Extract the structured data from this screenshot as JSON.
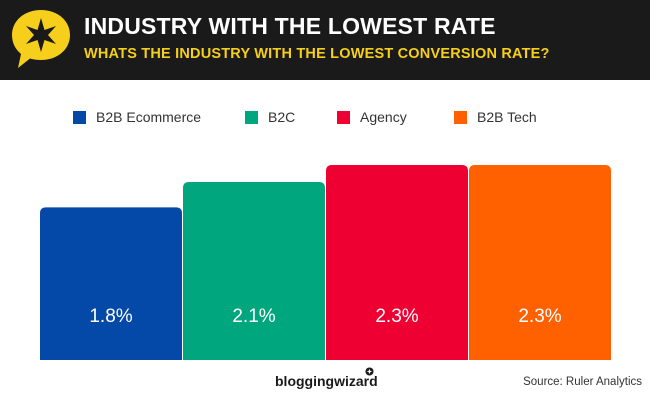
{
  "header": {
    "title": "INDUSTRY WITH THE LOWEST RATE",
    "subtitle": "WHATS THE INDUSTRY WITH THE LOWEST CONVERSION RATE?"
  },
  "colors": {
    "header_bg": "#1a1a1a",
    "badge": "#f5cf1c",
    "b2b_ecommerce": "#0448a8",
    "b2c": "#00a67e",
    "agency": "#ee0033",
    "b2b_tech": "#ff6000"
  },
  "chart_data": {
    "type": "bar",
    "title": "INDUSTRY WITH THE LOWEST RATE",
    "subtitle": "WHATS THE INDUSTRY WITH THE LOWEST CONVERSION RATE?",
    "categories": [
      "B2B Ecommerce",
      "B2C",
      "Agency",
      "B2B Tech"
    ],
    "values": [
      1.8,
      2.1,
      2.3,
      2.3
    ],
    "data_labels": [
      "1.8%",
      "2.1%",
      "2.3%",
      "2.3%"
    ],
    "unit": "%",
    "ylim": [
      0,
      2.3
    ],
    "xlabel": "",
    "ylabel": "",
    "grid": false,
    "legend": "top",
    "colors": [
      "#0448a8",
      "#00a67e",
      "#ee0033",
      "#ff6000"
    ]
  },
  "footer": {
    "brand": "bloggingwizard",
    "source": "Source: Ruler Analytics"
  }
}
